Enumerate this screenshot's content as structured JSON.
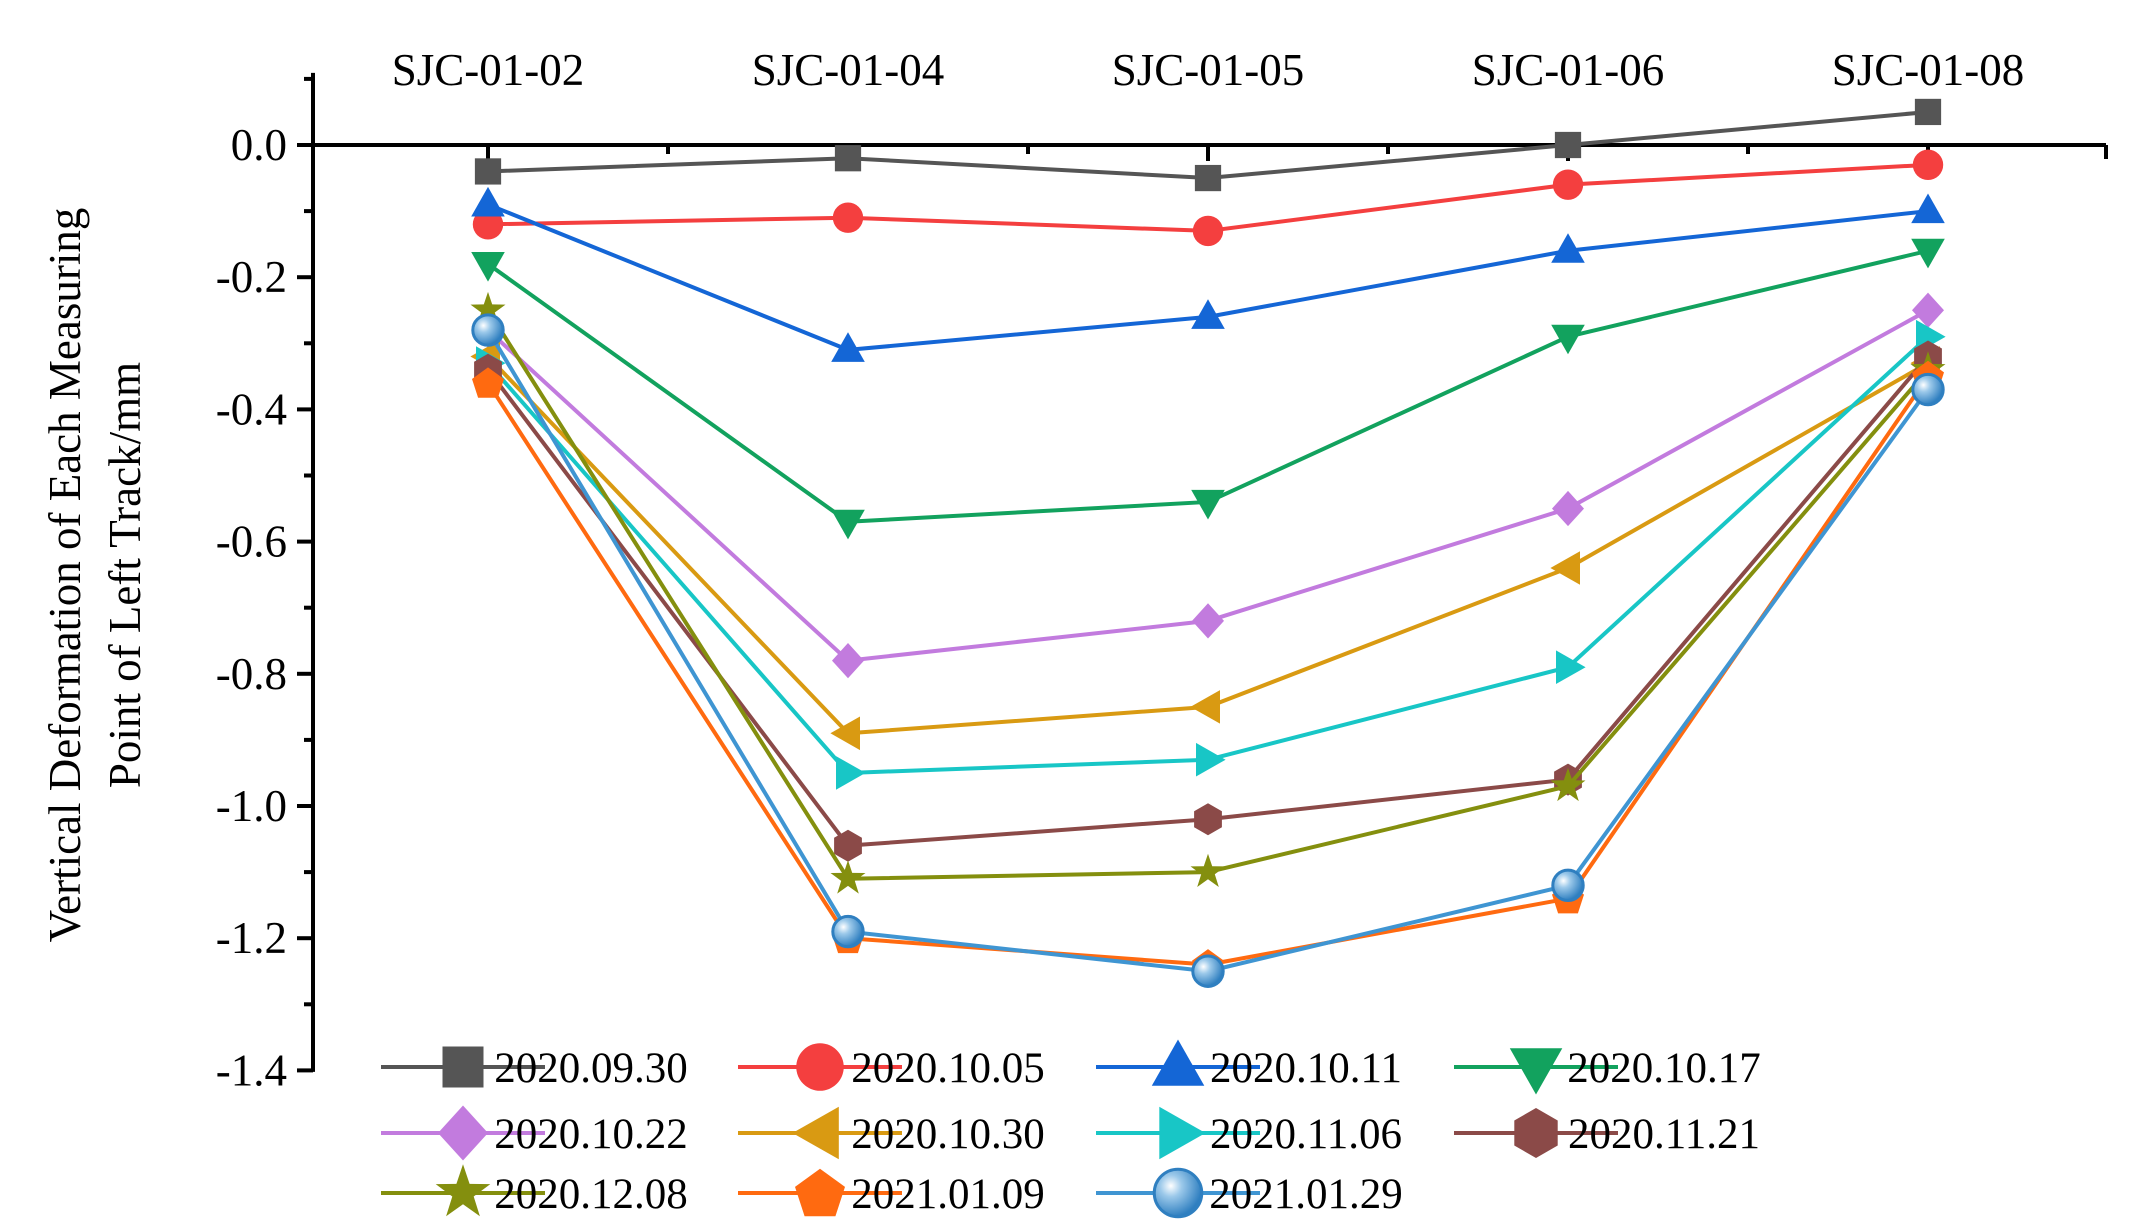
{
  "chart_data": {
    "type": "line",
    "title": "",
    "xlabel": "",
    "ylabel": [
      "Vertical Deformation of Each Measuring",
      "Point of Left Track/mm"
    ],
    "categories": [
      "SJC-01-02",
      "SJC-01-04",
      "SJC-01-05",
      "SJC-01-06",
      "SJC-01-08"
    ],
    "ylim": [
      -1.4,
      0.1
    ],
    "yticks": [
      0.0,
      -0.2,
      -0.4,
      -0.6,
      -0.8,
      -1.0,
      -1.2,
      -1.4
    ],
    "ytick_labels": [
      "0.0",
      "-0.2",
      "-0.4",
      "-0.6",
      "-0.8",
      "-1.0",
      "-1.2",
      "-1.4"
    ],
    "legend_position": "bottom",
    "series": [
      {
        "name": "2020.09.30",
        "color": "#555555",
        "marker": "square",
        "values": [
          -0.04,
          -0.02,
          -0.05,
          0.0,
          0.05
        ]
      },
      {
        "name": "2020.10.05",
        "color": "#f43f3f",
        "marker": "circle",
        "values": [
          -0.12,
          -0.11,
          -0.13,
          -0.06,
          -0.03
        ]
      },
      {
        "name": "2020.10.11",
        "color": "#1466d6",
        "marker": "triangle-up",
        "values": [
          -0.09,
          -0.31,
          -0.26,
          -0.16,
          -0.1
        ]
      },
      {
        "name": "2020.10.17",
        "color": "#12a25e",
        "marker": "triangle-down",
        "values": [
          -0.18,
          -0.57,
          -0.54,
          -0.29,
          -0.16
        ]
      },
      {
        "name": "2020.10.22",
        "color": "#c27bde",
        "marker": "diamond",
        "values": [
          -0.28,
          -0.78,
          -0.72,
          -0.55,
          -0.25
        ]
      },
      {
        "name": "2020.10.30",
        "color": "#d99a12",
        "marker": "triangle-left",
        "values": [
          -0.32,
          -0.89,
          -0.85,
          -0.64,
          -0.33
        ]
      },
      {
        "name": "2020.11.06",
        "color": "#18c6c6",
        "marker": "triangle-right",
        "values": [
          -0.33,
          -0.95,
          -0.93,
          -0.79,
          -0.29
        ]
      },
      {
        "name": "2020.11.21",
        "color": "#8b4a48",
        "marker": "hexagon",
        "values": [
          -0.34,
          -1.06,
          -1.02,
          -0.96,
          -0.32
        ]
      },
      {
        "name": "2020.12.08",
        "color": "#848f0e",
        "marker": "star",
        "values": [
          -0.25,
          -1.11,
          -1.1,
          -0.97,
          -0.34
        ]
      },
      {
        "name": "2021.01.09",
        "color": "#ff6a10",
        "marker": "pentagon",
        "values": [
          -0.36,
          -1.2,
          -1.24,
          -1.14,
          -0.35
        ]
      },
      {
        "name": "2021.01.29",
        "color": "#3f95d2",
        "marker": "sphere",
        "values": [
          -0.28,
          -1.19,
          -1.25,
          -1.12,
          -0.37
        ]
      }
    ]
  }
}
